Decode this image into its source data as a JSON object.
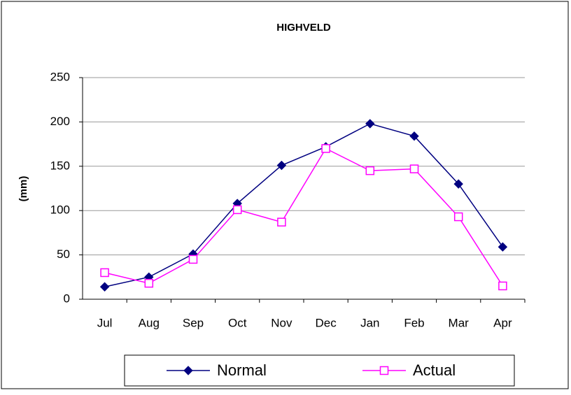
{
  "chart_data": {
    "type": "line",
    "title": "HIGHVELD",
    "y_label": "(mm)",
    "categories": [
      "Jul",
      "Aug",
      "Sep",
      "Oct",
      "Nov",
      "Dec",
      "Jan",
      "Feb",
      "Mar",
      "Apr"
    ],
    "series": [
      {
        "name": "Normal",
        "color": "#000080",
        "marker": "diamond",
        "values": [
          14,
          25,
          51,
          108,
          151,
          172,
          198,
          184,
          130,
          59
        ]
      },
      {
        "name": "Actual",
        "color": "#ff00ff",
        "marker": "square",
        "values": [
          30,
          18,
          45,
          101,
          87,
          170,
          145,
          147,
          93,
          15
        ]
      }
    ],
    "ylim": [
      0,
      250
    ],
    "yticks": [
      0,
      50,
      100,
      150,
      200,
      250
    ],
    "grid": true,
    "legend": "bottom"
  }
}
